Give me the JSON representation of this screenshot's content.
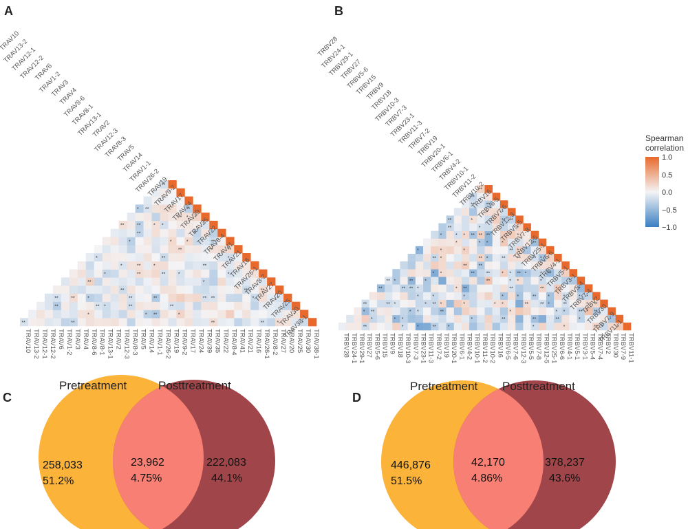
{
  "panels": [
    {
      "letter": "A"
    },
    {
      "letter": "B"
    },
    {
      "letter": "C"
    },
    {
      "letter": "D"
    }
  ],
  "colors": {
    "positive": "#e8692b",
    "neutral": "#f4f4f6",
    "negative": "#3a7fc1",
    "pretreatment": "#fbb33a",
    "posttreatment": "#a0464a",
    "overlap": "#f77f73"
  },
  "chart_data": [
    {
      "type": "heatmap",
      "title": "A",
      "subtype": "lower-triangular correlation matrix",
      "genes": [
        "TRAV10",
        "TRAV13-2",
        "TRAV12-1",
        "TRAV12-2",
        "TRAV6",
        "TRAV1-2",
        "TRAV3",
        "TRAV4",
        "TRAV8-6",
        "TRAV8-1",
        "TRAV13-1",
        "TRAV2",
        "TRAV12-3",
        "TRAV8-3",
        "TRAV5",
        "TRAV14",
        "TRAV1-1",
        "TRAV26-2",
        "TRAV19",
        "TRAV9-2",
        "TRAV17",
        "TRAV24",
        "TRAV39",
        "TRAV35",
        "TRAV22",
        "TRAV8-4",
        "TRAV41",
        "TRAV21",
        "TRAV16",
        "TRAV26-1",
        "TRAV8-2",
        "TRAV27",
        "TRAV20",
        "TRAV25",
        "TRAV30",
        "TRAV38-1"
      ],
      "diagonal_value": 1.0,
      "off_diagonal_range": [
        -0.4,
        0.3
      ],
      "significance_marks": [
        "*",
        "**"
      ]
    },
    {
      "type": "heatmap",
      "title": "B",
      "subtype": "lower-triangular correlation matrix",
      "genes": [
        "TRBV28",
        "TRBV24-1",
        "TRBV29-1",
        "TRBV27",
        "TRBV5-6",
        "TRBV15",
        "TRBV9",
        "TRBV18",
        "TRBV10-3",
        "TRBV7-3",
        "TRBV23-1",
        "TRBV11-3",
        "TRBV7-2",
        "TRBV19",
        "TRBV20-1",
        "TRBV6-1",
        "TRBV4-2",
        "TRBV10-1",
        "TRBV11-2",
        "TRBV10-2",
        "TRBV16",
        "TRBV6-5",
        "TRBV7-6",
        "TRBV12-3",
        "TRBV5-5",
        "TRBV7-8",
        "TRBV12-5",
        "TRBV25-1",
        "TRBV6-6",
        "TRBV4-1",
        "TRBV5-1",
        "TRBV3-1",
        "TRBV5-4",
        "TRBV7-4",
        "TRBV2",
        "TRBV30",
        "TRBV7-9",
        "TRBV11-1"
      ],
      "diagonal_value": 1.0,
      "off_diagonal_range": [
        -0.7,
        0.4
      ],
      "significance_marks": [
        "*",
        "**"
      ],
      "legend": {
        "title_lines": [
          "Spearman",
          "correlation"
        ],
        "ticks": [
          "1.0",
          "0.5",
          "0.0",
          "−0.5",
          "−1.0"
        ],
        "values": [
          1.0,
          0.5,
          0.0,
          -0.5,
          -1.0
        ]
      }
    },
    {
      "type": "venn",
      "title": "C",
      "sets": [
        "Pretreatment",
        "Posttreatment"
      ],
      "regions": [
        {
          "id": "pre_only",
          "count": "258,033",
          "percent": "51.2%",
          "value": 258033,
          "pct": 51.2
        },
        {
          "id": "overlap",
          "count": "23,962",
          "percent": "4.75%",
          "value": 23962,
          "pct": 4.75
        },
        {
          "id": "post_only",
          "count": "222,083",
          "percent": "44.1%",
          "value": 222083,
          "pct": 44.1
        }
      ]
    },
    {
      "type": "venn",
      "title": "D",
      "sets": [
        "Pretreatment",
        "Posttreatment"
      ],
      "regions": [
        {
          "id": "pre_only",
          "count": "446,876",
          "percent": "51.5%",
          "value": 446876,
          "pct": 51.5
        },
        {
          "id": "overlap",
          "count": "42,170",
          "percent": "4.86%",
          "value": 42170,
          "pct": 4.86
        },
        {
          "id": "post_only",
          "count": "378,237",
          "percent": "43.6%",
          "value": 378237,
          "pct": 43.6
        }
      ]
    }
  ]
}
